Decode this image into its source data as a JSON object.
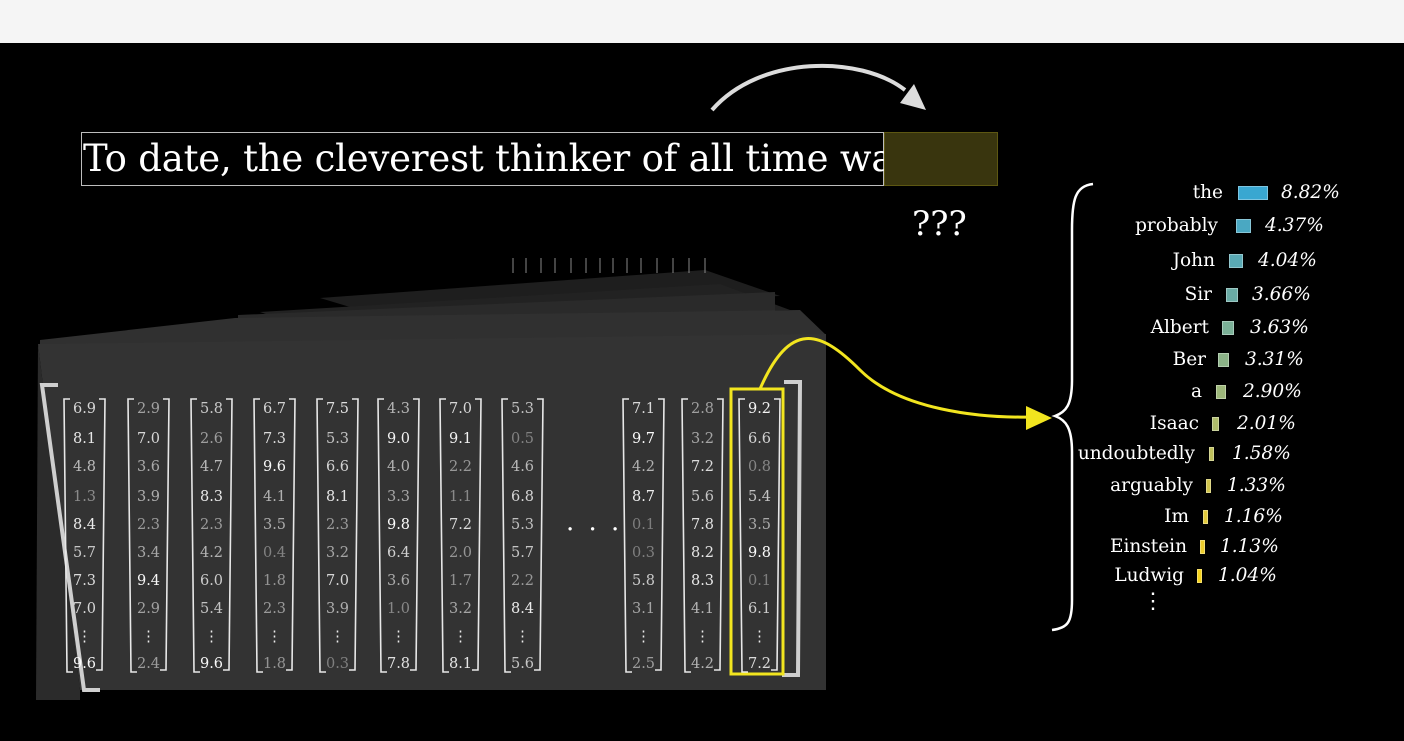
{
  "prompt": {
    "text": "To date, the cleverest thinker of all time was",
    "unknown": "???"
  },
  "network": {
    "ellipsis": "· · ·",
    "vectors": [
      [
        "6.9",
        "8.1",
        "4.8",
        "1.3",
        "8.4",
        "5.7",
        "7.3",
        "7.0",
        "⋮",
        "9.6"
      ],
      [
        "2.9",
        "7.0",
        "3.6",
        "3.9",
        "2.3",
        "3.4",
        "9.4",
        "2.9",
        "⋮",
        "2.4"
      ],
      [
        "5.8",
        "2.6",
        "4.7",
        "8.3",
        "2.3",
        "4.2",
        "6.0",
        "5.4",
        "⋮",
        "9.6"
      ],
      [
        "6.7",
        "7.3",
        "9.6",
        "4.1",
        "3.5",
        "0.4",
        "1.8",
        "2.3",
        "⋮",
        "1.8"
      ],
      [
        "7.5",
        "5.3",
        "6.6",
        "8.1",
        "2.3",
        "3.2",
        "7.0",
        "3.9",
        "⋮",
        "0.3"
      ],
      [
        "4.3",
        "9.0",
        "4.0",
        "3.3",
        "9.8",
        "6.4",
        "3.6",
        "1.0",
        "⋮",
        "7.8"
      ],
      [
        "7.0",
        "9.1",
        "2.2",
        "1.1",
        "7.2",
        "2.0",
        "1.7",
        "3.2",
        "⋮",
        "8.1"
      ],
      [
        "5.3",
        "0.5",
        "4.6",
        "6.8",
        "5.3",
        "5.7",
        "2.2",
        "8.4",
        "⋮",
        "5.6"
      ],
      [
        "7.1",
        "9.7",
        "4.2",
        "8.7",
        "0.1",
        "0.3",
        "5.8",
        "3.1",
        "⋮",
        "2.5"
      ],
      [
        "2.8",
        "3.2",
        "7.2",
        "5.6",
        "7.8",
        "8.2",
        "8.3",
        "4.1",
        "⋮",
        "4.2"
      ],
      [
        "9.2",
        "6.6",
        "0.8",
        "5.4",
        "3.5",
        "9.8",
        "0.1",
        "6.1",
        "⋮",
        "7.2"
      ]
    ]
  },
  "prediction": {
    "items": [
      {
        "token": "the",
        "pct": "8.82%",
        "value": 8.82,
        "color": "#39a7d1"
      },
      {
        "token": "probably",
        "pct": "4.37%",
        "value": 4.37,
        "color": "#4aa8c2"
      },
      {
        "token": "John",
        "pct": "4.04%",
        "value": 4.04,
        "color": "#5aa9b4"
      },
      {
        "token": "Sir",
        "pct": "3.66%",
        "value": 3.66,
        "color": "#6aaba5"
      },
      {
        "token": "Albert",
        "pct": "3.63%",
        "value": 3.63,
        "color": "#7bb097"
      },
      {
        "token": "Ber",
        "pct": "3.31%",
        "value": 3.31,
        "color": "#8cb388"
      },
      {
        "token": "a",
        "pct": "2.90%",
        "value": 2.9,
        "color": "#9db77a"
      },
      {
        "token": "Isaac",
        "pct": "2.01%",
        "value": 2.01,
        "color": "#aebb6b"
      },
      {
        "token": "undoubtedly",
        "pct": "1.58%",
        "value": 1.58,
        "color": "#bfc05c"
      },
      {
        "token": "arguably",
        "pct": "1.33%",
        "value": 1.33,
        "color": "#d0c44c"
      },
      {
        "token": "Im",
        "pct": "1.16%",
        "value": 1.16,
        "color": "#e1c93c"
      },
      {
        "token": "Einstein",
        "pct": "1.13%",
        "value": 1.13,
        "color": "#eccc2c"
      },
      {
        "token": "Ludwig",
        "pct": "1.04%",
        "value": 1.04,
        "color": "#f5d21c"
      }
    ],
    "more": "⋮"
  }
}
